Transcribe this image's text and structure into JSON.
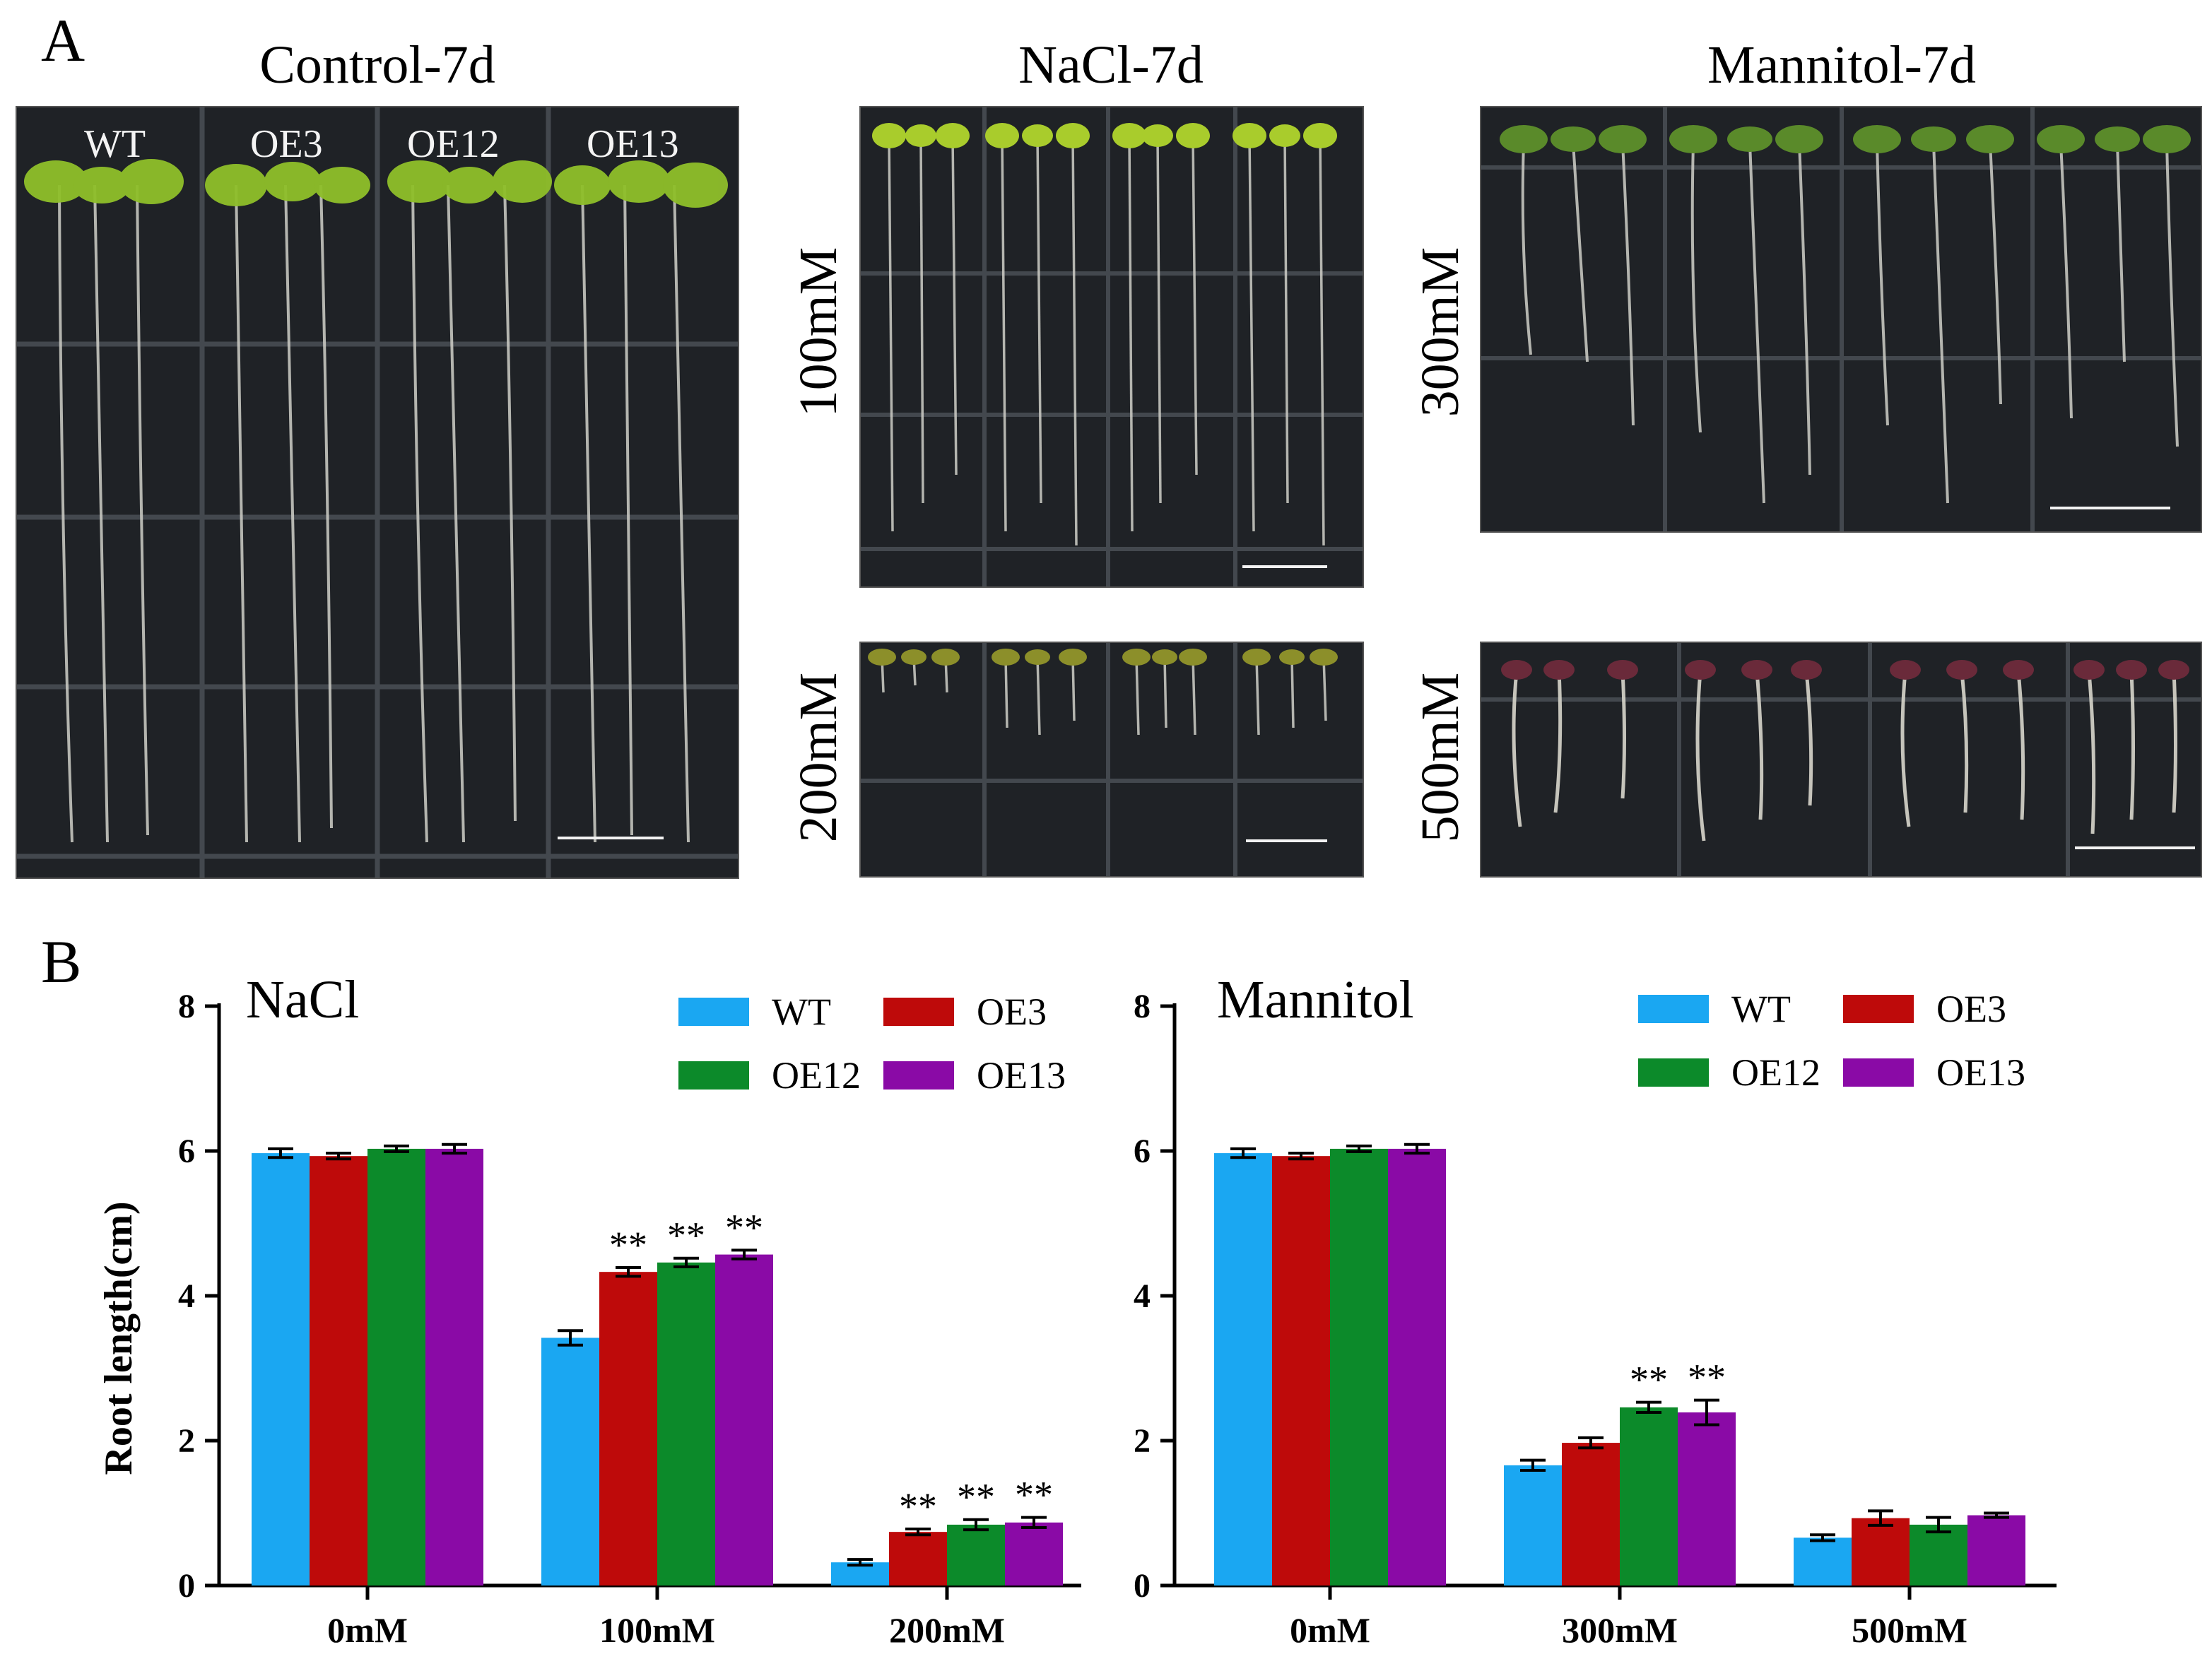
{
  "panel_a": {
    "letter": "A",
    "control": {
      "title": "Control-7d",
      "genotypes": [
        "WT",
        "OE3",
        "OE12",
        "OE13"
      ]
    },
    "nacl": {
      "title": "NaCl-7d",
      "rows": [
        "100mM",
        "200mM"
      ]
    },
    "mannitol": {
      "title": "Mannitol-7d",
      "rows": [
        "300mM",
        "500mM"
      ]
    }
  },
  "panel_b": {
    "letter": "B"
  },
  "colors": {
    "WT": "#1aa7f2",
    "OE3": "#be0a0a",
    "OE12": "#0c8a2a",
    "OE13": "#8a0aa6"
  },
  "chart_data": [
    {
      "type": "bar",
      "title": "NaCl",
      "xlabel": "",
      "ylabel": "Root length(cm)",
      "ylim": [
        0,
        8
      ],
      "yticks": [
        0,
        2,
        4,
        6,
        8
      ],
      "legend": "top-right",
      "categories": [
        "0mM",
        "100mM",
        "200mM"
      ],
      "series": [
        {
          "name": "WT",
          "values": [
            5.97,
            3.42,
            0.32
          ],
          "errors": [
            0.06,
            0.1,
            0.04
          ],
          "sig": [
            "",
            "",
            ""
          ]
        },
        {
          "name": "OE3",
          "values": [
            5.93,
            4.33,
            0.74
          ],
          "errors": [
            0.04,
            0.06,
            0.04
          ],
          "sig": [
            "",
            "**",
            "**"
          ]
        },
        {
          "name": "OE12",
          "values": [
            6.03,
            4.46,
            0.84
          ],
          "errors": [
            0.04,
            0.06,
            0.07
          ],
          "sig": [
            "",
            "**",
            "**"
          ]
        },
        {
          "name": "OE13",
          "values": [
            6.03,
            4.57,
            0.87
          ],
          "errors": [
            0.06,
            0.06,
            0.07
          ],
          "sig": [
            "",
            "**",
            "**"
          ]
        }
      ]
    },
    {
      "type": "bar",
      "title": "Mannitol",
      "xlabel": "",
      "ylabel": "",
      "ylim": [
        0,
        8
      ],
      "yticks": [
        0,
        2,
        4,
        6,
        8
      ],
      "legend": "top-right",
      "categories": [
        "0mM",
        "300mM",
        "500mM"
      ],
      "series": [
        {
          "name": "WT",
          "values": [
            5.97,
            1.66,
            0.66
          ],
          "errors": [
            0.06,
            0.07,
            0.04
          ],
          "sig": [
            "",
            "",
            ""
          ]
        },
        {
          "name": "OE3",
          "values": [
            5.93,
            1.97,
            0.93
          ],
          "errors": [
            0.04,
            0.07,
            0.1
          ],
          "sig": [
            "",
            "",
            ""
          ]
        },
        {
          "name": "OE12",
          "values": [
            6.03,
            2.46,
            0.84
          ],
          "errors": [
            0.04,
            0.07,
            0.1
          ],
          "sig": [
            "",
            "**",
            ""
          ]
        },
        {
          "name": "OE13",
          "values": [
            6.03,
            2.39,
            0.97
          ],
          "errors": [
            0.06,
            0.17,
            0.03
          ],
          "sig": [
            "",
            "**",
            ""
          ]
        }
      ]
    }
  ]
}
